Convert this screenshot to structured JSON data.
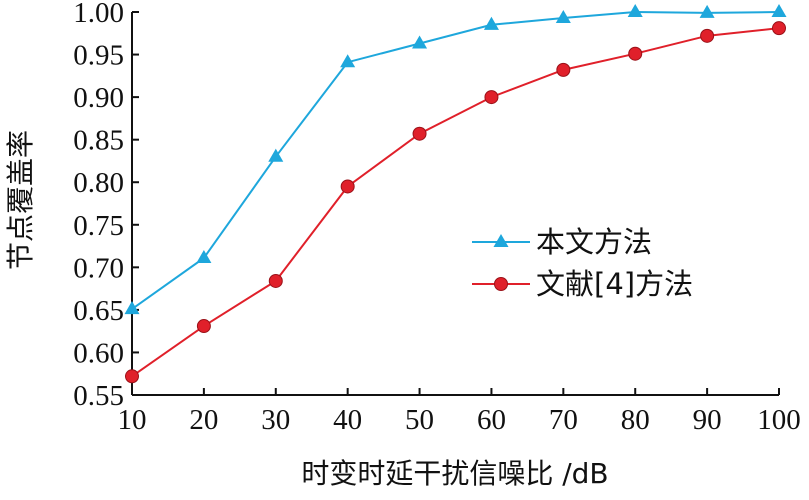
{
  "chart_data": {
    "type": "line",
    "xlabel": "时变时延干扰信噪比 /dB",
    "ylabel": "节点覆盖率",
    "x": [
      10,
      20,
      30,
      40,
      50,
      60,
      70,
      80,
      90,
      100
    ],
    "xlim": [
      10,
      100
    ],
    "ylim": [
      0.55,
      1.0
    ],
    "x_ticks": [
      "10",
      "20",
      "30",
      "40",
      "50",
      "60",
      "70",
      "80",
      "90",
      "100"
    ],
    "y_ticks": [
      "0.55",
      "0.60",
      "0.65",
      "0.70",
      "0.75",
      "0.80",
      "0.85",
      "0.90",
      "0.95",
      "1.00"
    ],
    "grid": false,
    "legend_position": "center-right",
    "series": [
      {
        "name": "本文方法",
        "color": "#1ea7dc",
        "marker": "triangle",
        "values": [
          0.651,
          0.711,
          0.83,
          0.941,
          0.963,
          0.985,
          0.993,
          1.0,
          0.999,
          1.0
        ]
      },
      {
        "name": "文献[4]方法",
        "color": "#e0202a",
        "marker": "circle",
        "values": [
          0.572,
          0.631,
          0.684,
          0.795,
          0.857,
          0.9,
          0.932,
          0.951,
          0.972,
          0.981
        ]
      }
    ]
  }
}
